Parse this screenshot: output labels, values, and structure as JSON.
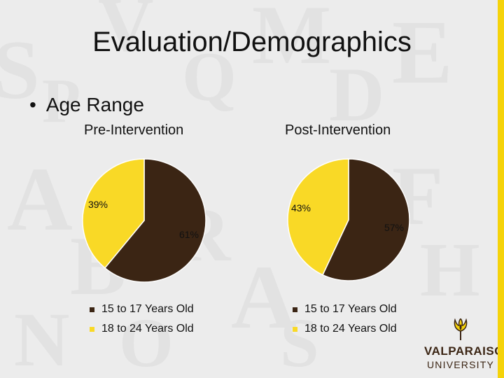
{
  "slide": {
    "title": "Evaluation/Demographics",
    "bullet": "Age Range"
  },
  "colors": {
    "dark_brown": "#3b2514",
    "yellow": "#f9d926",
    "accent_bar": "#f5d30a"
  },
  "chart_data": [
    {
      "type": "pie",
      "title": "Pre-Intervention",
      "series": [
        {
          "label": "15 to 17 Years Old",
          "value": 61,
          "data_label": "61%",
          "color": "#3b2514"
        },
        {
          "label": "18 to 24 Years Old",
          "value": 39,
          "data_label": "39%",
          "color": "#f9d926"
        }
      ],
      "legend": [
        "15 to 17 Years Old",
        "18 to 24 Years Old"
      ],
      "legend_placement": "bottom"
    },
    {
      "type": "pie",
      "title": "Post-Intervention",
      "series": [
        {
          "label": "15 to 17 Years Old",
          "value": 57,
          "data_label": "57%",
          "color": "#3b2514"
        },
        {
          "label": "18 to 24 Years Old",
          "value": 43,
          "data_label": "43%",
          "color": "#f9d926"
        }
      ],
      "legend": [
        "15 to 17 Years Old",
        "18 to 24 Years Old"
      ],
      "legend_placement": "bottom"
    }
  ],
  "logo": {
    "line1": "VALPARAISO",
    "line2": "UNIVERSITY",
    "icon": "torch-flame-icon"
  }
}
